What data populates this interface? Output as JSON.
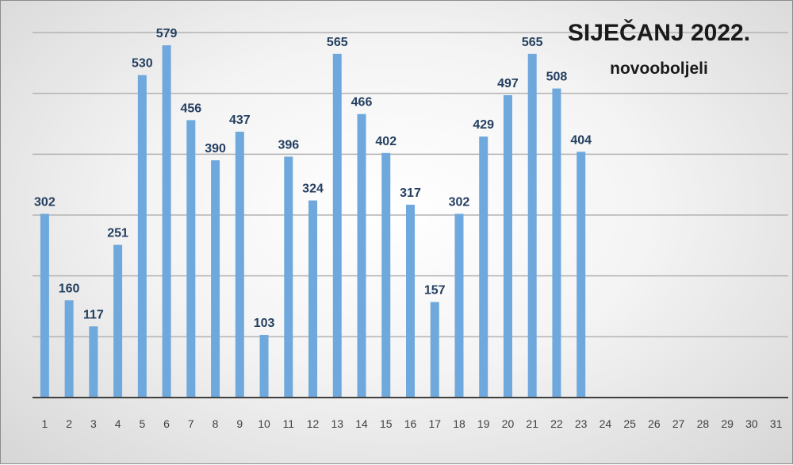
{
  "chart_data": {
    "type": "bar",
    "title": "SIJEČANJ 2022.",
    "subtitle": "novooboljeli",
    "categories": [
      "1",
      "2",
      "3",
      "4",
      "5",
      "6",
      "7",
      "8",
      "9",
      "10",
      "11",
      "12",
      "13",
      "14",
      "15",
      "16",
      "17",
      "18",
      "19",
      "20",
      "21",
      "22",
      "23",
      "24",
      "25",
      "26",
      "27",
      "28",
      "29",
      "30",
      "31"
    ],
    "values": [
      302,
      160,
      117,
      251,
      530,
      579,
      456,
      390,
      437,
      103,
      396,
      324,
      565,
      466,
      402,
      317,
      157,
      302,
      429,
      497,
      565,
      508,
      404,
      null,
      null,
      null,
      null,
      null,
      null,
      null,
      null
    ],
    "ylim": [
      0,
      600
    ],
    "grid": true,
    "legend": "none",
    "colors": {
      "bar": "#6fa8dc",
      "label": "#243f60",
      "axis": "#404040",
      "grid": "#b3b3b3"
    }
  }
}
